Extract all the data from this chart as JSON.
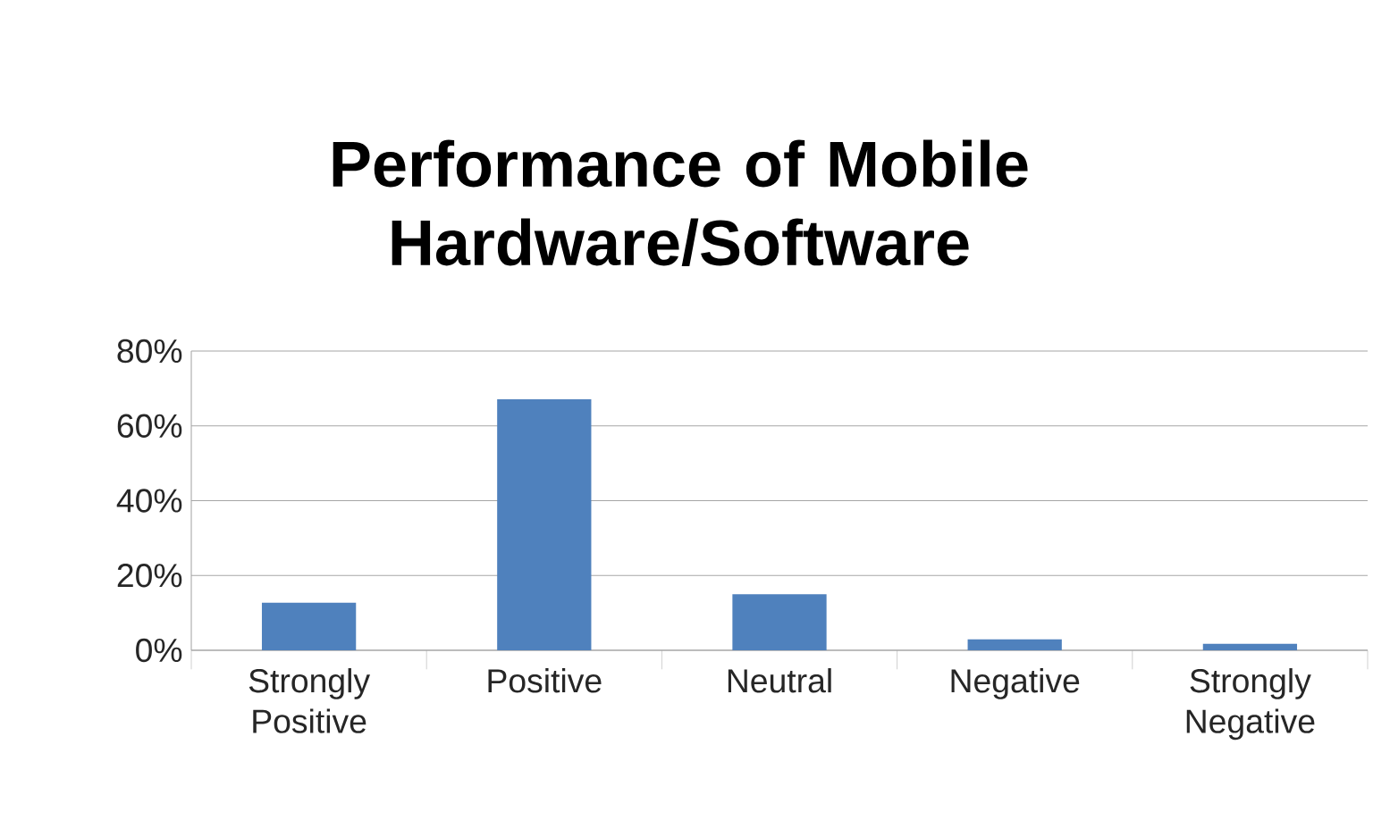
{
  "chart_data": {
    "type": "bar",
    "title": "Performance of Mobile Hardware/Software",
    "categories": [
      "Strongly Positive",
      "Positive",
      "Neutral",
      "Negative",
      "Strongly Negative"
    ],
    "values": [
      12.7,
      67.1,
      15.0,
      2.9,
      1.7
    ],
    "color": "#4f81bd",
    "ylim": [
      0,
      80
    ],
    "yticks": [
      {
        "value": 0,
        "label": "0%"
      },
      {
        "value": 20,
        "label": "20%"
      },
      {
        "value": 40,
        "label": "40%"
      },
      {
        "value": 60,
        "label": "60%"
      },
      {
        "value": 80,
        "label": "80%"
      }
    ],
    "grid": "y"
  }
}
